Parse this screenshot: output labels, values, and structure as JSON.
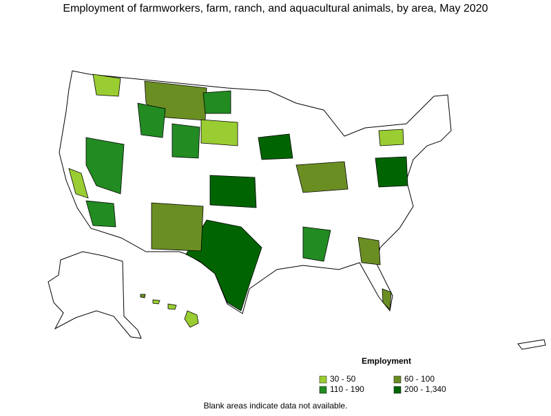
{
  "title": "Employment of farmworkers, farm, ranch, and aquacultural animals, by area, May 2020",
  "legend": {
    "title": "Employment",
    "items": [
      {
        "label": "30 - 50",
        "color": "#9acd32"
      },
      {
        "label": "60 - 100",
        "color": "#6b8e23"
      },
      {
        "label": "110 - 190",
        "color": "#228b22"
      },
      {
        "label": "200 - 1,340",
        "color": "#006400"
      }
    ]
  },
  "footnote": "Blank areas indicate data not available."
}
